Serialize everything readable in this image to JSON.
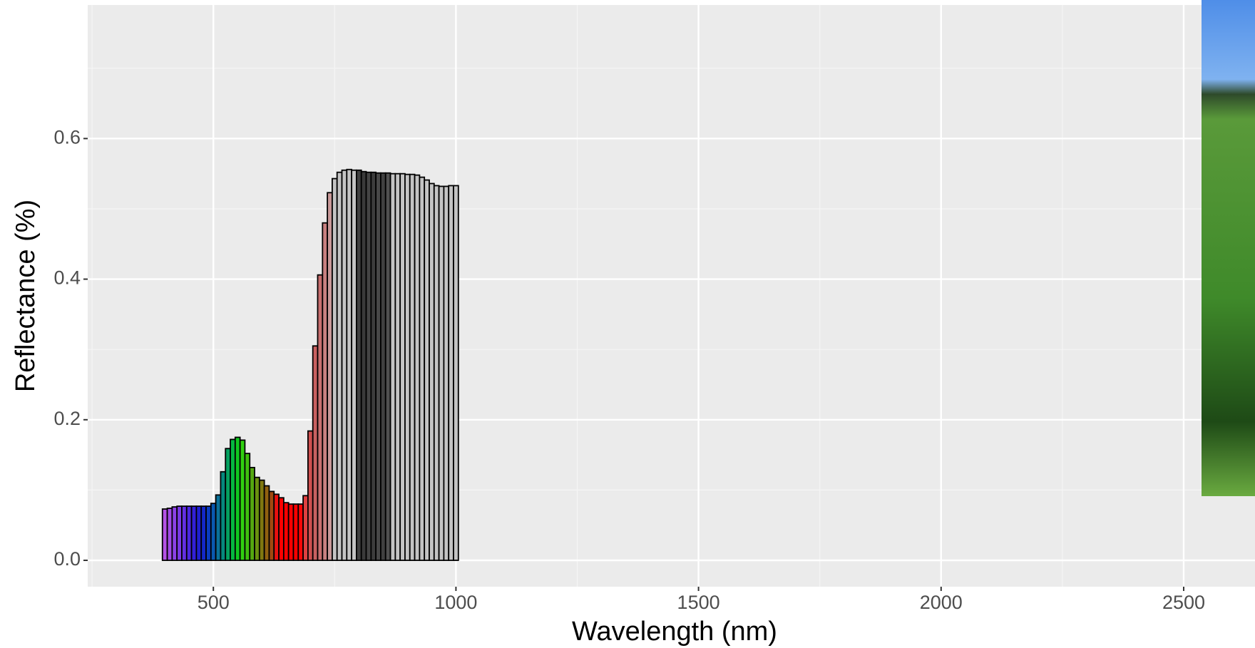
{
  "chart_data": {
    "type": "bar",
    "x_label": "Wavelength (nm)",
    "y_label": "Reflectance (%)",
    "x": [
      400,
      410,
      420,
      430,
      440,
      450,
      460,
      470,
      480,
      490,
      500,
      510,
      520,
      530,
      540,
      550,
      560,
      570,
      580,
      590,
      600,
      610,
      620,
      630,
      640,
      650,
      660,
      670,
      680,
      690,
      700,
      710,
      720,
      730,
      740,
      750,
      760,
      770,
      780,
      790,
      800,
      810,
      820,
      830,
      840,
      850,
      860,
      870,
      880,
      890,
      900,
      910,
      920,
      930,
      940,
      950,
      960,
      970,
      980,
      990,
      1000
    ],
    "values": [
      0.073,
      0.074,
      0.076,
      0.077,
      0.077,
      0.077,
      0.077,
      0.077,
      0.077,
      0.077,
      0.081,
      0.093,
      0.126,
      0.159,
      0.172,
      0.175,
      0.171,
      0.152,
      0.132,
      0.118,
      0.114,
      0.106,
      0.098,
      0.094,
      0.089,
      0.082,
      0.08,
      0.08,
      0.08,
      0.092,
      0.184,
      0.305,
      0.406,
      0.48,
      0.523,
      0.543,
      0.552,
      0.555,
      0.556,
      0.555,
      0.555,
      0.553,
      0.552,
      0.552,
      0.551,
      0.551,
      0.551,
      0.55,
      0.55,
      0.55,
      0.549,
      0.549,
      0.548,
      0.545,
      0.541,
      0.536,
      0.533,
      0.532,
      0.532,
      0.533,
      0.533
    ],
    "colors": [
      "#b452e6",
      "#a24be8",
      "#8c42e6",
      "#7a3ae6",
      "#6330e3",
      "#4a27e0",
      "#3320d8",
      "#1f1fd0",
      "#1428c8",
      "#0a3cc0",
      "#0a58b0",
      "#0a7098",
      "#06887e",
      "#05a060",
      "#05b840",
      "#10c820",
      "#30d010",
      "#40c010",
      "#55a810",
      "#6a9010",
      "#807810",
      "#906010",
      "#a04810",
      "#e81010",
      "#ff0000",
      "#ff0000",
      "#ff0000",
      "#ff0000",
      "#f80808",
      "#e04040",
      "#d05050",
      "#c86060",
      "#c87070",
      "#c88080",
      "#c89898",
      "#c4c4c4",
      "#c4c4c4",
      "#c4c4c4",
      "#c4c4c4",
      "#c4c4c4",
      "#404040",
      "#3a3a3a",
      "#444444",
      "#3c3c3c",
      "#484848",
      "#404040",
      "#505050",
      "#c4c4c4",
      "#c4c4c4",
      "#c4c4c4",
      "#c4c4c4",
      "#c4c4c4",
      "#c4c4c4",
      "#c4c4c4",
      "#c4c4c4",
      "#c4c4c4",
      "#c4c4c4",
      "#c4c4c4",
      "#c4c4c4",
      "#c4c4c4",
      "#c4c4c4"
    ],
    "bar_width": 10,
    "xlim": [
      241,
      2647
    ],
    "ylim": [
      -0.0375,
      0.79
    ],
    "xticks": [
      500,
      1000,
      1500,
      2000,
      2500
    ],
    "yticks": [
      {
        "value": 0,
        "label": "0.0"
      },
      0.2,
      0.4,
      0.6
    ],
    "grid": true
  }
}
